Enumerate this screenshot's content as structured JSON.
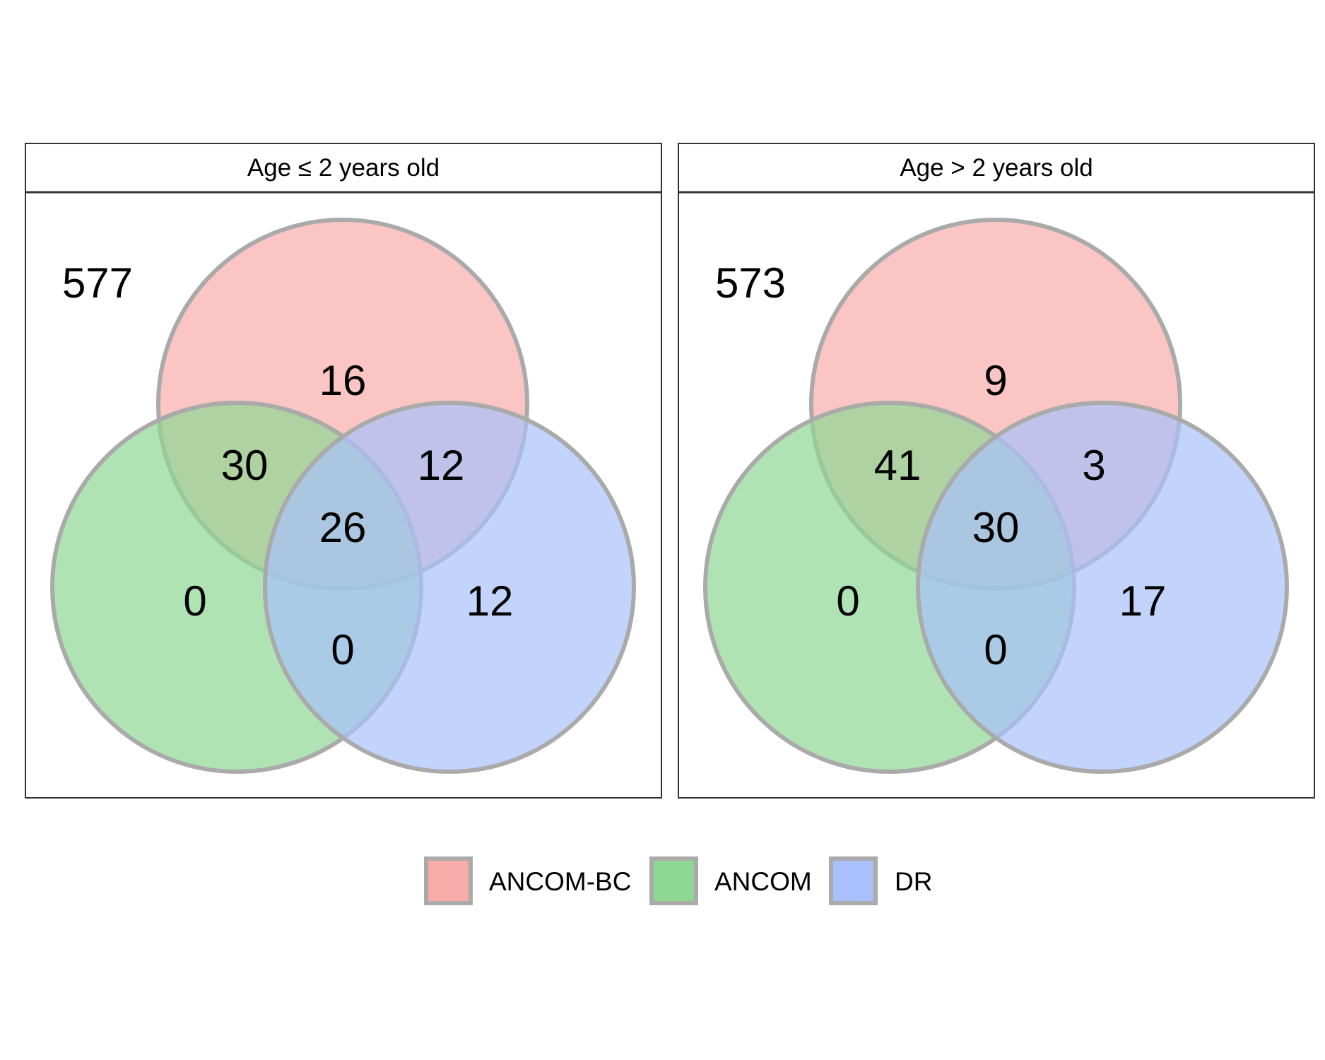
{
  "colors": {
    "ancom_bc": "#F8ACA9",
    "ancom": "#8DD793",
    "dr": "#A8C0FB",
    "circle_outline": "#AAAAAA",
    "panel_border": "#333333",
    "text": "#000000",
    "background": "#FFFFFF"
  },
  "sets": [
    {
      "key": "ancom_bc",
      "label": "ANCOM-BC"
    },
    {
      "key": "ancom",
      "label": "ANCOM"
    },
    {
      "key": "dr",
      "label": "DR"
    }
  ],
  "panels": [
    {
      "title": "Age ≤ 2 years old",
      "outside": "577",
      "counts": {
        "ancom_bc_only": "16",
        "ancom_bc_ancom": "30",
        "ancom_bc_dr": "12",
        "all_three": "26",
        "ancom_only": "0",
        "dr_only": "12",
        "ancom_dr": "0"
      }
    },
    {
      "title": "Age > 2 years old",
      "outside": "573",
      "counts": {
        "ancom_bc_only": "9",
        "ancom_bc_ancom": "41",
        "ancom_bc_dr": "3",
        "all_three": "30",
        "ancom_only": "0",
        "dr_only": "17",
        "ancom_dr": "0"
      }
    }
  ],
  "legend": {
    "items": [
      {
        "label": "ANCOM-BC",
        "color_key": "ancom_bc"
      },
      {
        "label": "ANCOM",
        "color_key": "ancom"
      },
      {
        "label": "DR",
        "color_key": "dr"
      }
    ]
  }
}
